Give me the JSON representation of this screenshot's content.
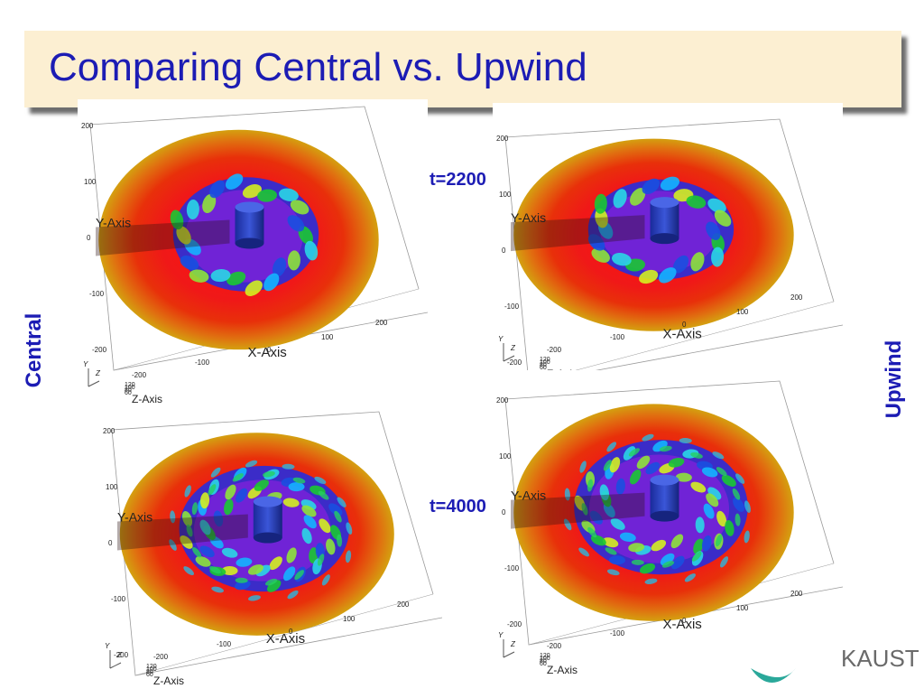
{
  "slide": {
    "title": "Comparing Central vs. Upwind",
    "left_label": "Central",
    "right_label": "Upwind",
    "time_labels": [
      "t=2200",
      "t=4000"
    ],
    "logo_text": "KAUST"
  },
  "plot_text": {
    "y_axis": "Y-Axis",
    "x_axis": "X-Axis",
    "z_axis_partial": "Z-Axis",
    "tick_left": [
      "200",
      "100",
      "0",
      "-100",
      "-200"
    ],
    "tick_bottom": [
      "-200",
      "-100",
      "0",
      "100",
      "200"
    ],
    "z_ticks": [
      "120",
      "100",
      "80",
      "60"
    ],
    "orient_y": "Y",
    "orient_z": "Z"
  },
  "colors": {
    "title_bg": "#fcefd2",
    "title_text": "#1c1cb4",
    "label_text": "#1c1cb4"
  }
}
